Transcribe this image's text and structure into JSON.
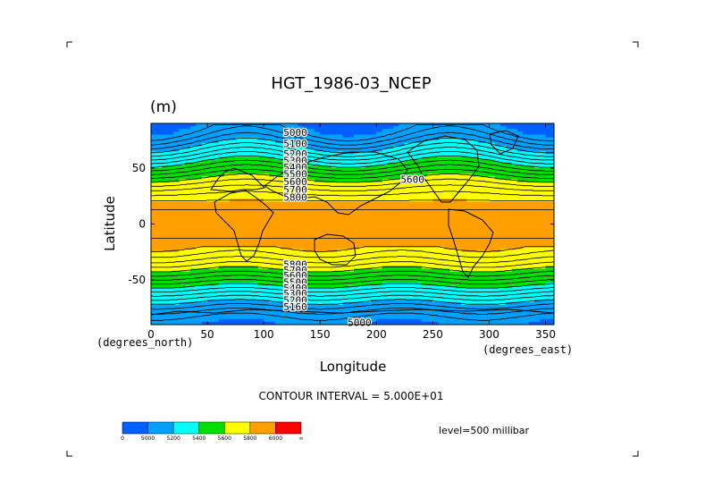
{
  "chart_data": {
    "type": "heatmap",
    "title": "HGT_1986-03_NCEP",
    "units": "(m)",
    "xlabel": "Longitude",
    "ylabel": "Latitude",
    "x_units_label": "(degrees_east)",
    "y_units_label": "(degrees_north)",
    "xlim": [
      0,
      357.5
    ],
    "ylim": [
      -90,
      90
    ],
    "x_ticks": [
      "0",
      "50",
      "100",
      "150",
      "200",
      "250",
      "300",
      "350"
    ],
    "x_tick_values": [
      0,
      50,
      100,
      150,
      200,
      250,
      300,
      350
    ],
    "y_ticks": [
      "50",
      "0",
      "-50"
    ],
    "y_tick_values": [
      50,
      0,
      -50
    ],
    "contour_interval": "CONTOUR INTERVAL = 5.000E+01",
    "level": "level=500 millibar",
    "colorbar": {
      "tick_labels": [
        "0",
        "5000",
        "5200",
        "5400",
        "5600",
        "5800",
        "6000",
        "∞"
      ],
      "colors": [
        "#0060ff",
        "#00a0ff",
        "#00ffff",
        "#00e000",
        "#ffff00",
        "#ffa000",
        "#ff0000"
      ]
    },
    "contour_labels": [
      {
        "text": "5000",
        "lon": 128,
        "lat": 82
      },
      {
        "text": "5100",
        "lon": 128,
        "lat": 72
      },
      {
        "text": "5200",
        "lon": 128,
        "lat": 63
      },
      {
        "text": "5300",
        "lon": 128,
        "lat": 57
      },
      {
        "text": "5400",
        "lon": 128,
        "lat": 51
      },
      {
        "text": "5500",
        "lon": 128,
        "lat": 45
      },
      {
        "text": "5600",
        "lon": 128,
        "lat": 38
      },
      {
        "text": "5700",
        "lon": 128,
        "lat": 31
      },
      {
        "text": "5800",
        "lon": 128,
        "lat": 24
      },
      {
        "text": "5600",
        "lon": 232,
        "lat": 40
      },
      {
        "text": "5800",
        "lon": 128,
        "lat": -36
      },
      {
        "text": "5700",
        "lon": 128,
        "lat": -41
      },
      {
        "text": "5600",
        "lon": 128,
        "lat": -46
      },
      {
        "text": "5500",
        "lon": 128,
        "lat": -52
      },
      {
        "text": "5400",
        "lon": 128,
        "lat": -57
      },
      {
        "text": "5300",
        "lon": 128,
        "lat": -62
      },
      {
        "text": "5200",
        "lon": 128,
        "lat": -68
      },
      {
        "text": "5160",
        "lon": 128,
        "lat": -74
      },
      {
        "text": "5000",
        "lon": 185,
        "lat": -88
      }
    ]
  }
}
